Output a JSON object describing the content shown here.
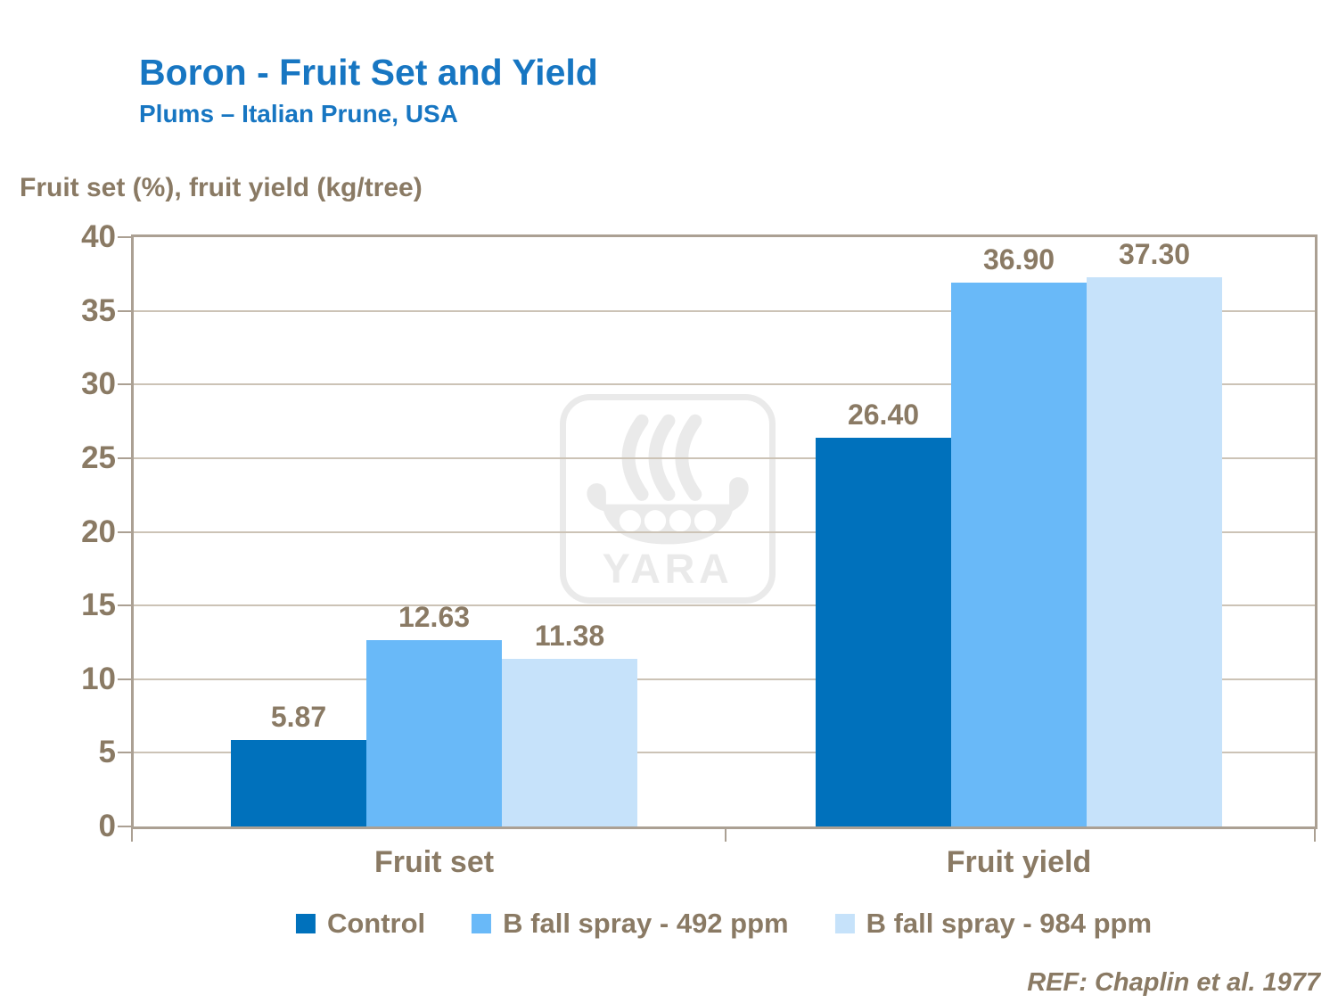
{
  "title": "Boron - Fruit Set and Yield",
  "subtitle": "Plums – Italian Prune, USA",
  "axis_title": "Fruit set (%), fruit yield (kg/tree)",
  "reference": "REF: Chaplin et al. 1977",
  "watermark_text": "YARA",
  "colors": {
    "title_blue": "#1776C2",
    "text_brown": "#8A7A64",
    "frame": "#ABA093",
    "grid": "#CCC3B6",
    "watermark": "#EAEAEA"
  },
  "chart_data": {
    "type": "bar",
    "categories": [
      "Fruit set",
      "Fruit yield"
    ],
    "series": [
      {
        "name": "Control",
        "color": "#0071BC",
        "values": [
          5.87,
          26.4
        ]
      },
      {
        "name": "B fall spray - 492 ppm",
        "color": "#69B9F8",
        "values": [
          12.63,
          36.9
        ]
      },
      {
        "name": "B fall spray - 984 ppm",
        "color": "#C6E2FA",
        "values": [
          11.38,
          37.3
        ]
      }
    ],
    "value_labels": [
      [
        "5.87",
        "26.40"
      ],
      [
        "12.63",
        "36.90"
      ],
      [
        "11.38",
        "37.30"
      ]
    ],
    "ylim": [
      0,
      40
    ],
    "ytick_step": 5,
    "yticks": [
      0,
      5,
      10,
      15,
      20,
      25,
      30,
      35,
      40
    ],
    "grid": true,
    "legend_position": "bottom"
  }
}
